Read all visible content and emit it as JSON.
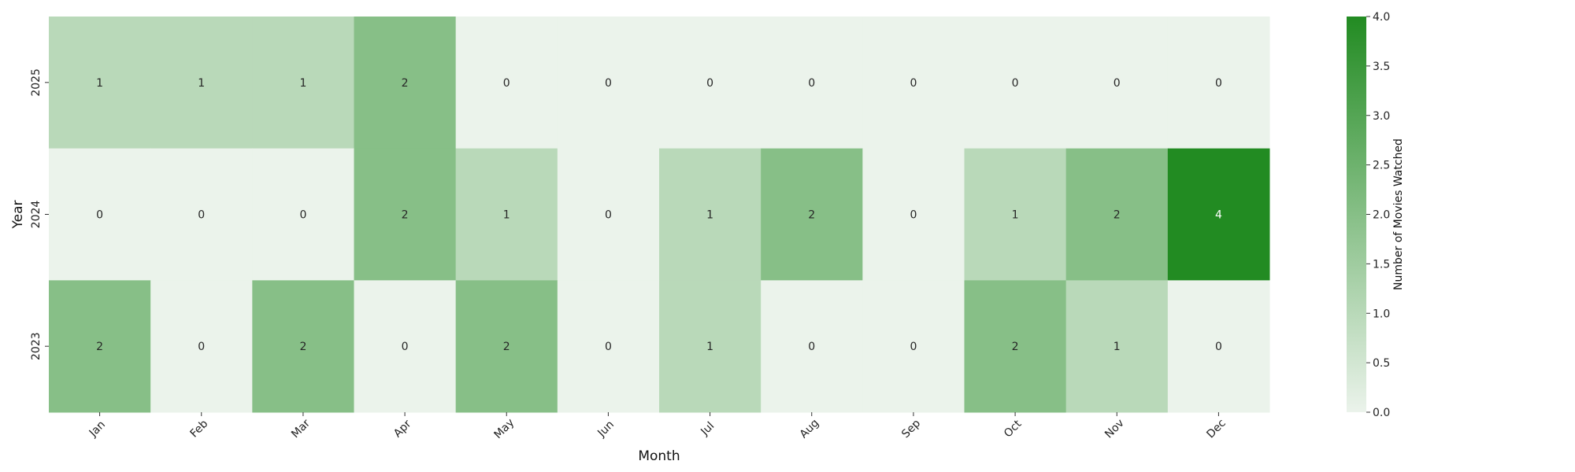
{
  "chart_data": {
    "type": "heatmap",
    "xlabel": "Month",
    "ylabel": "Year",
    "x_categories": [
      "Jan",
      "Feb",
      "Mar",
      "Apr",
      "May",
      "Jun",
      "Jul",
      "Aug",
      "Sep",
      "Oct",
      "Nov",
      "Dec"
    ],
    "y_categories": [
      "2025",
      "2024",
      "2023"
    ],
    "values": [
      [
        1,
        1,
        1,
        2,
        0,
        0,
        0,
        0,
        0,
        0,
        0,
        0
      ],
      [
        0,
        0,
        0,
        2,
        1,
        0,
        1,
        2,
        0,
        1,
        2,
        4
      ],
      [
        2,
        0,
        2,
        0,
        2,
        0,
        1,
        0,
        0,
        2,
        1,
        0
      ]
    ],
    "value_range": [
      0,
      4
    ],
    "annotations": true,
    "colorbar": {
      "label": "Number of Movies Watched",
      "ticks": [
        "0.0",
        "0.5",
        "1.0",
        "1.5",
        "2.0",
        "2.5",
        "3.0",
        "3.5",
        "4.0"
      ],
      "tick_values": [
        0,
        0.5,
        1,
        1.5,
        2,
        2.5,
        3,
        3.5,
        4
      ],
      "color_low": "#ebf3eb",
      "color_high": "#228b22"
    },
    "x_tick_rotation": 45,
    "y_tick_rotation": 90
  }
}
